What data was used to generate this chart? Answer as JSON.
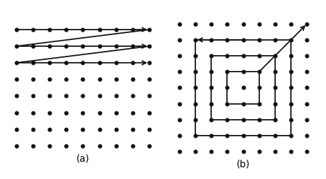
{
  "background": "#ffffff",
  "dot_color": "#111111",
  "line_color": "#111111",
  "dot_size_a": 4.5,
  "dot_size_b": 4.5,
  "label_a": "(a)",
  "label_b": "(b)",
  "grid_a_cols": 9,
  "grid_a_rows": 8,
  "grid_b_cols": 9,
  "grid_b_rows": 9,
  "lw": 1.3
}
